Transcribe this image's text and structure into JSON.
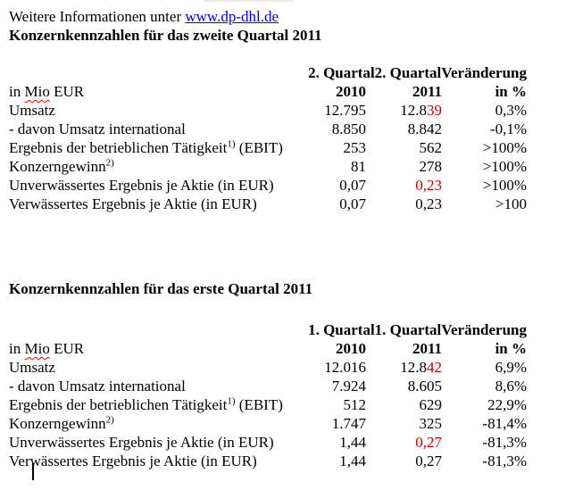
{
  "intro": {
    "text": "Weitere Informationen unter ",
    "link": "www.dp-dhl.de"
  },
  "colors": {
    "changed_value_red": "#cc0000",
    "link_blue": "#0000ff",
    "spellcheck_red": "#ff0000"
  },
  "sections": [
    {
      "heading": "Konzernkennzahlen für das zweite Quartal 2011",
      "table": {
        "header_row1": {
          "col2": "2. Quartal",
          "col3": "2. Quartal",
          "col4": "Veränderung"
        },
        "unit_label": {
          "pre": "in ",
          "word": "Mio",
          "post": " EUR"
        },
        "year_2010": "2010",
        "year_2011": "2011",
        "change_label": "in %",
        "rows": [
          {
            "label": [
              {
                "t": "Umsatz"
              }
            ],
            "v2010": [
              {
                "t": "12.795"
              }
            ],
            "v2011": [
              {
                "t": "12.8"
              },
              {
                "t": "39",
                "red": true
              }
            ],
            "change": [
              {
                "t": "0,3%"
              }
            ]
          },
          {
            "label": [
              {
                "t": "- davon Umsatz international"
              }
            ],
            "v2010": [
              {
                "t": "8.850"
              }
            ],
            "v2011": [
              {
                "t": "8.842"
              }
            ],
            "change": [
              {
                "t": "-0,1%"
              }
            ]
          },
          {
            "label": [
              {
                "t": "Ergebnis der betrieblichen Tätigkeit"
              },
              {
                "t": "1)",
                "sup": true
              },
              {
                "t": " (EBIT)"
              }
            ],
            "v2010": [
              {
                "t": "253"
              }
            ],
            "v2011": [
              {
                "t": "562"
              }
            ],
            "change": [
              {
                "t": ">100%"
              }
            ]
          },
          {
            "label": [
              {
                "t": "Konzerngewinn"
              },
              {
                "t": "2)",
                "sup": true
              }
            ],
            "v2010": [
              {
                "t": "81"
              }
            ],
            "v2011": [
              {
                "t": "278"
              }
            ],
            "change": [
              {
                "t": ">100%"
              }
            ]
          },
          {
            "label": [
              {
                "t": "Unverwässertes Ergebnis je Aktie (in EUR)"
              }
            ],
            "v2010": [
              {
                "t": "0,07"
              }
            ],
            "v2011": [
              {
                "t": "0,23",
                "red": true
              }
            ],
            "change": [
              {
                "t": ">100%"
              }
            ]
          },
          {
            "label": [
              {
                "t": "Verwässertes Ergebnis je Aktie (in EUR)"
              }
            ],
            "v2010": [
              {
                "t": "0,07"
              }
            ],
            "v2011": [
              {
                "t": "0,23"
              }
            ],
            "change": [
              {
                "t": ">100"
              }
            ]
          }
        ]
      }
    },
    {
      "heading": "Konzernkennzahlen für das erste Quartal 2011",
      "table": {
        "header_row1": {
          "col2": "1. Quartal",
          "col3": "1. Quartal",
          "col4": "Veränderung"
        },
        "unit_label": {
          "pre": "in ",
          "word": "Mio",
          "post": " EUR"
        },
        "year_2010": "2010",
        "year_2011": "2011",
        "change_label": "in %",
        "rows": [
          {
            "label": [
              {
                "t": "Umsatz"
              }
            ],
            "v2010": [
              {
                "t": "12.016"
              }
            ],
            "v2011": [
              {
                "t": "12.8"
              },
              {
                "t": "42",
                "red": true
              }
            ],
            "change": [
              {
                "t": "6,9%"
              }
            ]
          },
          {
            "label": [
              {
                "t": "- davon Umsatz international"
              }
            ],
            "v2010": [
              {
                "t": "7.924"
              }
            ],
            "v2011": [
              {
                "t": "8.605"
              }
            ],
            "change": [
              {
                "t": "8,6%"
              }
            ]
          },
          {
            "label": [
              {
                "t": "Ergebnis der betrieblichen Tätigkeit"
              },
              {
                "t": "1)",
                "sup": true
              },
              {
                "t": " (EBIT)"
              }
            ],
            "v2010": [
              {
                "t": "512"
              }
            ],
            "v2011": [
              {
                "t": "629"
              }
            ],
            "change": [
              {
                "t": "22,9%"
              }
            ]
          },
          {
            "label": [
              {
                "t": "Konzerngewinn"
              },
              {
                "t": "2)",
                "sup": true
              }
            ],
            "v2010": [
              {
                "t": "1.747"
              }
            ],
            "v2011": [
              {
                "t": "325"
              }
            ],
            "change": [
              {
                "t": "-81,4%"
              }
            ]
          },
          {
            "label": [
              {
                "t": "Unverwässertes Ergebnis je Aktie (in EUR)"
              }
            ],
            "v2010": [
              {
                "t": "1,44"
              }
            ],
            "v2011": [
              {
                "t": "0,27",
                "red": true
              }
            ],
            "change": [
              {
                "t": "-81,3%"
              }
            ]
          },
          {
            "label": [
              {
                "t": "Verwässertes Ergebnis je Aktie (in EUR)"
              }
            ],
            "v2010": [
              {
                "t": "1,44"
              }
            ],
            "v2011": [
              {
                "t": "0,27"
              }
            ],
            "change": [
              {
                "t": "-81,3%"
              }
            ]
          }
        ]
      }
    }
  ],
  "editor": {
    "caret_visible": true
  }
}
